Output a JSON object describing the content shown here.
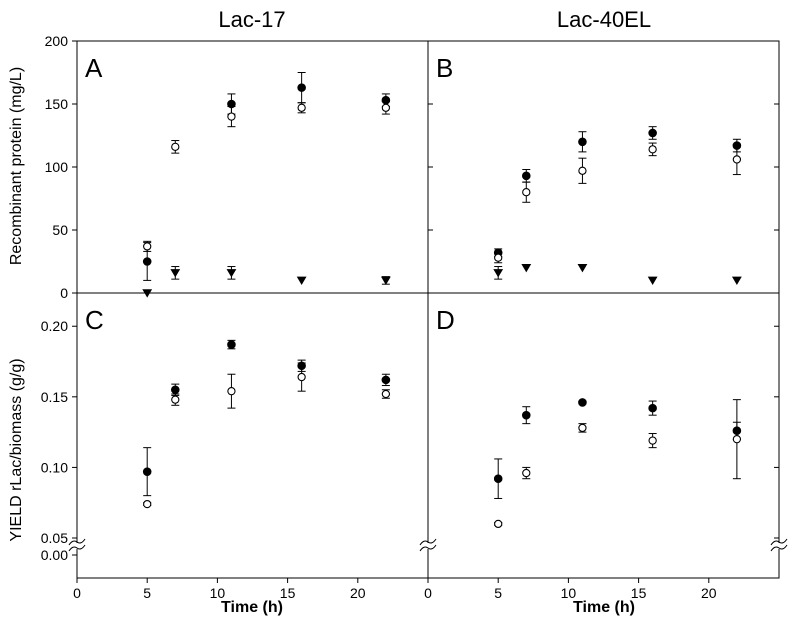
{
  "chart_data": {
    "type": "scatter",
    "column_titles": [
      "Lac-17",
      "Lac-40EL"
    ],
    "xlabel": "Time (h)",
    "xlim": [
      0,
      25
    ],
    "x_ticks": [
      "0",
      "5",
      "10",
      "15",
      "20"
    ],
    "grid": false,
    "rows": [
      {
        "ylabel": "Recombinant protein (mg/L)",
        "ylim": [
          0,
          200
        ],
        "y_ticks": [
          "0",
          "50",
          "100",
          "150",
          "200"
        ],
        "panels": [
          {
            "letter": "A",
            "series": [
              {
                "marker": "filled-circle",
                "points": [
                  {
                    "x": 5,
                    "y": 25,
                    "err": 15
                  },
                  {
                    "x": 11,
                    "y": 150,
                    "err": 8
                  },
                  {
                    "x": 16,
                    "y": 163,
                    "err": 12
                  },
                  {
                    "x": 22,
                    "y": 153,
                    "err": 5
                  }
                ]
              },
              {
                "marker": "open-circle",
                "points": [
                  {
                    "x": 5,
                    "y": 37,
                    "err": 4
                  },
                  {
                    "x": 7,
                    "y": 116,
                    "err": 5
                  },
                  {
                    "x": 11,
                    "y": 140,
                    "err": 8
                  },
                  {
                    "x": 16,
                    "y": 147,
                    "err": 4
                  },
                  {
                    "x": 22,
                    "y": 147,
                    "err": 5
                  }
                ]
              },
              {
                "marker": "filled-triangle-down",
                "points": [
                  {
                    "x": 5,
                    "y": 0,
                    "err": 0
                  },
                  {
                    "x": 7,
                    "y": 16,
                    "err": 5
                  },
                  {
                    "x": 11,
                    "y": 16,
                    "err": 5
                  },
                  {
                    "x": 16,
                    "y": 10,
                    "err": 0
                  },
                  {
                    "x": 22,
                    "y": 10,
                    "err": 3
                  }
                ]
              }
            ]
          },
          {
            "letter": "B",
            "series": [
              {
                "marker": "filled-circle",
                "points": [
                  {
                    "x": 5,
                    "y": 32,
                    "err": 3
                  },
                  {
                    "x": 7,
                    "y": 93,
                    "err": 5
                  },
                  {
                    "x": 11,
                    "y": 120,
                    "err": 8
                  },
                  {
                    "x": 16,
                    "y": 127,
                    "err": 5
                  },
                  {
                    "x": 22,
                    "y": 117,
                    "err": 5
                  }
                ]
              },
              {
                "marker": "open-circle",
                "points": [
                  {
                    "x": 5,
                    "y": 28,
                    "err": 4
                  },
                  {
                    "x": 7,
                    "y": 80,
                    "err": 8
                  },
                  {
                    "x": 11,
                    "y": 97,
                    "err": 10
                  },
                  {
                    "x": 16,
                    "y": 114,
                    "err": 5
                  },
                  {
                    "x": 22,
                    "y": 106,
                    "err": 12
                  }
                ]
              },
              {
                "marker": "filled-triangle-down",
                "points": [
                  {
                    "x": 5,
                    "y": 16,
                    "err": 5
                  },
                  {
                    "x": 7,
                    "y": 20,
                    "err": 0
                  },
                  {
                    "x": 11,
                    "y": 20,
                    "err": 0
                  },
                  {
                    "x": 16,
                    "y": 10,
                    "err": 0
                  },
                  {
                    "x": 22,
                    "y": 10,
                    "err": 0
                  }
                ]
              }
            ]
          }
        ]
      },
      {
        "ylabel": "YIELD rLac/biomass (g/g)",
        "ylim": [
          0.05,
          0.22
        ],
        "y_ticks": [
          "0.05",
          "0.10",
          "0.15",
          "0.20"
        ],
        "y_break_ticks": [
          "0.00"
        ],
        "axis_break": true,
        "panels": [
          {
            "letter": "C",
            "series": [
              {
                "marker": "filled-circle",
                "points": [
                  {
                    "x": 5,
                    "y": 0.097,
                    "err": 0.017
                  },
                  {
                    "x": 7,
                    "y": 0.155,
                    "err": 0.004
                  },
                  {
                    "x": 11,
                    "y": 0.187,
                    "err": 0.003
                  },
                  {
                    "x": 16,
                    "y": 0.172,
                    "err": 0.004
                  },
                  {
                    "x": 22,
                    "y": 0.162,
                    "err": 0.004
                  }
                ]
              },
              {
                "marker": "open-circle",
                "points": [
                  {
                    "x": 5,
                    "y": 0.074,
                    "err": 0.001
                  },
                  {
                    "x": 7,
                    "y": 0.148,
                    "err": 0.004
                  },
                  {
                    "x": 11,
                    "y": 0.154,
                    "err": 0.012
                  },
                  {
                    "x": 16,
                    "y": 0.164,
                    "err": 0.01
                  },
                  {
                    "x": 22,
                    "y": 0.152,
                    "err": 0.003
                  }
                ]
              }
            ]
          },
          {
            "letter": "D",
            "series": [
              {
                "marker": "filled-circle",
                "points": [
                  {
                    "x": 5,
                    "y": 0.092,
                    "err": 0.014
                  },
                  {
                    "x": 7,
                    "y": 0.137,
                    "err": 0.006
                  },
                  {
                    "x": 11,
                    "y": 0.146,
                    "err": 0.001
                  },
                  {
                    "x": 16,
                    "y": 0.142,
                    "err": 0.005
                  },
                  {
                    "x": 22,
                    "y": 0.126,
                    "err": 0.006
                  }
                ]
              },
              {
                "marker": "open-circle",
                "points": [
                  {
                    "x": 5,
                    "y": 0.06,
                    "err": 0.001
                  },
                  {
                    "x": 7,
                    "y": 0.096,
                    "err": 0.004
                  },
                  {
                    "x": 11,
                    "y": 0.128,
                    "err": 0.003
                  },
                  {
                    "x": 16,
                    "y": 0.119,
                    "err": 0.005
                  },
                  {
                    "x": 22,
                    "y": 0.12,
                    "err": 0.028
                  }
                ]
              }
            ]
          }
        ]
      }
    ]
  }
}
